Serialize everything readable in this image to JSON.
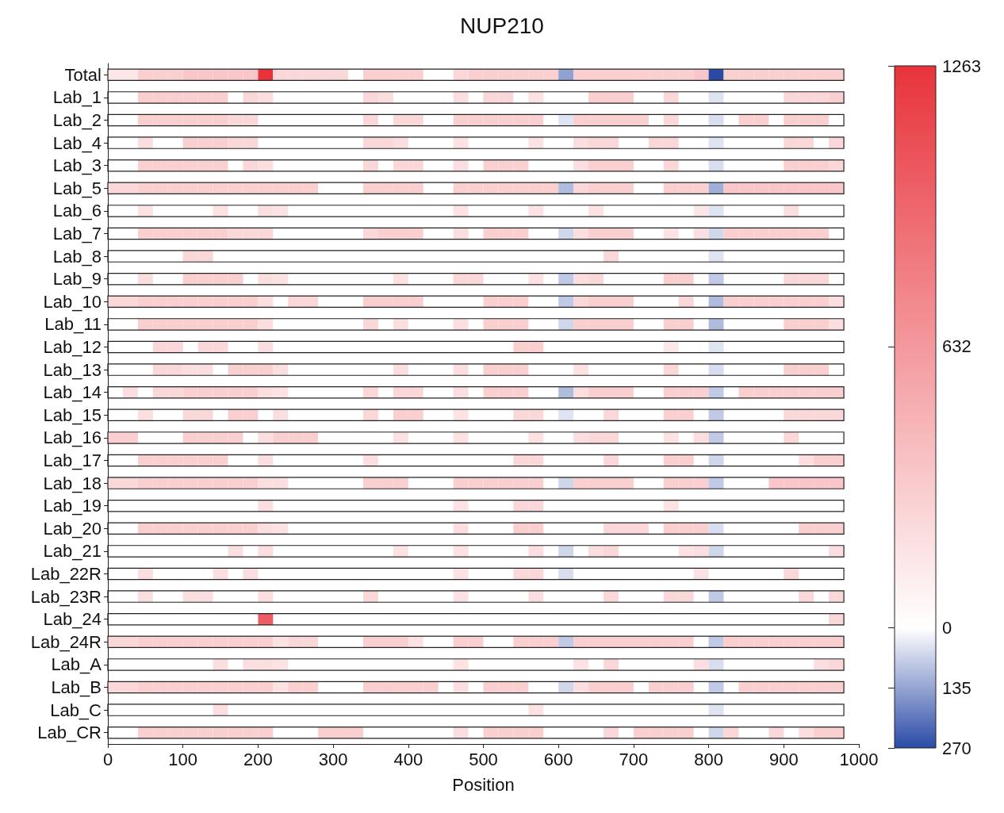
{
  "chart_data": {
    "type": "heatmap",
    "title": "NUP210",
    "xlabel": "Position",
    "x": [
      10,
      30,
      50,
      70,
      90,
      110,
      130,
      150,
      170,
      190,
      210,
      230,
      250,
      270,
      290,
      310,
      330,
      350,
      370,
      390,
      410,
      430,
      450,
      470,
      490,
      510,
      530,
      550,
      570,
      590,
      610,
      630,
      650,
      670,
      690,
      710,
      730,
      750,
      770,
      790,
      810,
      830,
      850,
      870,
      890,
      910,
      930,
      950,
      970
    ],
    "xlim": [
      0,
      1000
    ],
    "xticks": [
      0,
      100,
      200,
      300,
      400,
      500,
      600,
      700,
      800,
      900,
      1000
    ],
    "y_categories": [
      "Total",
      "Lab_1",
      "Lab_2",
      "Lab_4",
      "Lab_3",
      "Lab_5",
      "Lab_6",
      "Lab_7",
      "Lab_8",
      "Lab_9",
      "Lab_10",
      "Lab_11",
      "Lab_12",
      "Lab_13",
      "Lab_14",
      "Lab_15",
      "Lab_16",
      "Lab_17",
      "Lab_18",
      "Lab_19",
      "Lab_20",
      "Lab_21",
      "Lab_22R",
      "Lab_23R",
      "Lab_24",
      "Lab_24R",
      "Lab_A",
      "Lab_B",
      "Lab_C",
      "Lab_CR"
    ],
    "clim": [
      -270,
      1263
    ],
    "cticks": [
      1263,
      632,
      0,
      {
        "value": -135,
        "label": "135"
      },
      {
        "value": -270,
        "label": "270"
      }
    ],
    "cells": [
      [
        150,
        150,
        300,
        300,
        300,
        350,
        350,
        350,
        350,
        350,
        1263,
        250,
        250,
        250,
        250,
        250,
        null,
        300,
        300,
        300,
        300,
        null,
        null,
        250,
        300,
        300,
        300,
        300,
        300,
        300,
        -140,
        300,
        300,
        300,
        300,
        300,
        300,
        300,
        300,
        350,
        -270,
        300,
        300,
        300,
        300,
        300,
        300,
        300,
        300
      ],
      [
        null,
        null,
        300,
        300,
        300,
        300,
        300,
        300,
        null,
        250,
        200,
        null,
        null,
        null,
        null,
        null,
        null,
        250,
        200,
        null,
        null,
        null,
        null,
        200,
        null,
        250,
        250,
        null,
        180,
        null,
        null,
        null,
        300,
        300,
        300,
        null,
        null,
        250,
        null,
        null,
        -40,
        null,
        null,
        null,
        null,
        250,
        250,
        250,
        300
      ],
      [
        null,
        null,
        300,
        300,
        300,
        300,
        300,
        300,
        250,
        250,
        null,
        null,
        null,
        null,
        null,
        null,
        null,
        250,
        null,
        250,
        250,
        null,
        null,
        300,
        300,
        300,
        300,
        300,
        300,
        null,
        -40,
        300,
        300,
        300,
        300,
        300,
        null,
        250,
        null,
        null,
        -50,
        null,
        300,
        300,
        null,
        300,
        300,
        300,
        null
      ],
      [
        null,
        null,
        200,
        null,
        null,
        300,
        300,
        300,
        250,
        250,
        null,
        null,
        null,
        null,
        null,
        null,
        null,
        250,
        250,
        200,
        null,
        null,
        null,
        180,
        null,
        null,
        null,
        null,
        180,
        null,
        null,
        200,
        250,
        250,
        null,
        null,
        250,
        250,
        null,
        null,
        -40,
        null,
        null,
        null,
        null,
        250,
        250,
        null,
        250
      ],
      [
        null,
        null,
        300,
        300,
        300,
        300,
        300,
        300,
        null,
        250,
        200,
        null,
        null,
        null,
        null,
        null,
        null,
        250,
        null,
        250,
        250,
        null,
        null,
        200,
        null,
        300,
        300,
        300,
        null,
        null,
        null,
        200,
        300,
        300,
        300,
        null,
        null,
        250,
        null,
        null,
        -50,
        null,
        null,
        null,
        null,
        300,
        300,
        300,
        250
      ],
      [
        250,
        250,
        300,
        300,
        300,
        300,
        300,
        300,
        300,
        300,
        300,
        300,
        300,
        300,
        null,
        null,
        null,
        300,
        300,
        300,
        300,
        null,
        null,
        300,
        300,
        300,
        300,
        300,
        300,
        300,
        -100,
        250,
        300,
        300,
        300,
        null,
        null,
        300,
        300,
        300,
        -120,
        350,
        350,
        350,
        350,
        350,
        350,
        350,
        350
      ],
      [
        null,
        null,
        180,
        null,
        null,
        null,
        null,
        180,
        null,
        null,
        200,
        180,
        null,
        null,
        null,
        null,
        null,
        null,
        null,
        null,
        null,
        null,
        null,
        180,
        null,
        null,
        null,
        null,
        180,
        null,
        null,
        null,
        180,
        null,
        null,
        null,
        null,
        null,
        null,
        150,
        -40,
        null,
        null,
        null,
        null,
        200,
        null,
        null,
        null
      ],
      [
        null,
        null,
        300,
        300,
        300,
        300,
        300,
        300,
        250,
        250,
        250,
        null,
        null,
        null,
        null,
        null,
        null,
        250,
        300,
        300,
        300,
        null,
        null,
        200,
        null,
        300,
        300,
        300,
        null,
        null,
        -60,
        200,
        300,
        300,
        300,
        null,
        null,
        180,
        null,
        200,
        -60,
        300,
        300,
        300,
        300,
        300,
        300,
        300,
        null
      ],
      [
        null,
        null,
        null,
        null,
        null,
        250,
        250,
        null,
        null,
        null,
        null,
        null,
        null,
        null,
        null,
        null,
        null,
        null,
        null,
        null,
        null,
        null,
        null,
        null,
        null,
        null,
        null,
        null,
        null,
        null,
        null,
        null,
        null,
        250,
        null,
        null,
        null,
        null,
        null,
        null,
        -40,
        null,
        null,
        null,
        null,
        null,
        null,
        null,
        null
      ],
      [
        null,
        null,
        200,
        null,
        null,
        300,
        300,
        300,
        300,
        null,
        200,
        180,
        null,
        null,
        null,
        null,
        null,
        null,
        null,
        180,
        null,
        null,
        null,
        250,
        250,
        null,
        null,
        null,
        180,
        null,
        -80,
        200,
        250,
        null,
        null,
        null,
        null,
        300,
        300,
        null,
        -80,
        null,
        null,
        null,
        null,
        250,
        250,
        250,
        null
      ],
      [
        250,
        250,
        300,
        300,
        300,
        300,
        300,
        300,
        300,
        300,
        200,
        null,
        250,
        250,
        null,
        null,
        null,
        300,
        300,
        300,
        300,
        null,
        null,
        null,
        null,
        300,
        300,
        300,
        null,
        null,
        -80,
        250,
        300,
        300,
        300,
        null,
        null,
        null,
        250,
        null,
        -100,
        300,
        300,
        300,
        300,
        300,
        300,
        300,
        200
      ],
      [
        null,
        null,
        300,
        300,
        300,
        300,
        300,
        300,
        300,
        300,
        200,
        null,
        null,
        null,
        null,
        null,
        null,
        250,
        null,
        200,
        null,
        null,
        null,
        200,
        null,
        300,
        300,
        300,
        null,
        null,
        -60,
        300,
        300,
        300,
        300,
        null,
        null,
        300,
        300,
        null,
        -100,
        null,
        null,
        null,
        null,
        300,
        300,
        300,
        200
      ],
      [
        null,
        null,
        null,
        250,
        250,
        null,
        250,
        250,
        null,
        null,
        200,
        null,
        null,
        null,
        null,
        null,
        null,
        null,
        null,
        null,
        null,
        null,
        null,
        null,
        null,
        null,
        null,
        300,
        300,
        null,
        null,
        null,
        null,
        null,
        null,
        null,
        null,
        150,
        null,
        null,
        -40,
        null,
        null,
        null,
        null,
        null,
        null,
        null,
        null
      ],
      [
        null,
        null,
        null,
        250,
        250,
        200,
        200,
        null,
        300,
        300,
        300,
        200,
        null,
        null,
        null,
        null,
        null,
        null,
        null,
        200,
        null,
        null,
        null,
        200,
        null,
        300,
        300,
        300,
        null,
        null,
        null,
        180,
        null,
        null,
        null,
        null,
        null,
        250,
        null,
        null,
        -50,
        null,
        null,
        null,
        null,
        300,
        300,
        300,
        null
      ],
      [
        null,
        200,
        null,
        250,
        250,
        300,
        300,
        300,
        300,
        300,
        200,
        180,
        null,
        null,
        null,
        null,
        null,
        250,
        null,
        250,
        250,
        null,
        null,
        200,
        null,
        300,
        300,
        300,
        null,
        null,
        -100,
        200,
        300,
        300,
        300,
        null,
        null,
        300,
        300,
        300,
        -80,
        null,
        300,
        300,
        300,
        300,
        300,
        300,
        300
      ],
      [
        null,
        null,
        200,
        null,
        null,
        250,
        250,
        null,
        300,
        300,
        null,
        200,
        null,
        null,
        null,
        null,
        null,
        250,
        null,
        300,
        300,
        null,
        null,
        180,
        null,
        null,
        null,
        250,
        250,
        null,
        -40,
        null,
        null,
        250,
        null,
        null,
        null,
        300,
        300,
        null,
        -80,
        null,
        null,
        null,
        null,
        250,
        250,
        250,
        250
      ],
      [
        300,
        300,
        null,
        null,
        null,
        300,
        300,
        300,
        300,
        null,
        200,
        300,
        300,
        300,
        null,
        null,
        null,
        null,
        null,
        180,
        null,
        null,
        null,
        180,
        null,
        null,
        null,
        null,
        180,
        null,
        null,
        200,
        250,
        250,
        null,
        null,
        null,
        180,
        null,
        200,
        -80,
        null,
        null,
        null,
        null,
        250,
        null,
        null,
        null
      ],
      [
        null,
        null,
        300,
        300,
        300,
        300,
        300,
        300,
        null,
        null,
        200,
        null,
        null,
        null,
        null,
        null,
        null,
        200,
        null,
        null,
        null,
        null,
        null,
        null,
        null,
        null,
        null,
        250,
        250,
        null,
        null,
        null,
        null,
        250,
        null,
        null,
        null,
        300,
        300,
        null,
        -60,
        null,
        null,
        null,
        null,
        null,
        200,
        300,
        300
      ],
      [
        250,
        250,
        300,
        300,
        300,
        300,
        300,
        300,
        300,
        300,
        200,
        200,
        null,
        null,
        null,
        null,
        null,
        300,
        300,
        300,
        null,
        null,
        null,
        300,
        300,
        300,
        300,
        300,
        300,
        null,
        -60,
        300,
        300,
        300,
        300,
        null,
        null,
        300,
        300,
        300,
        -80,
        null,
        null,
        null,
        350,
        350,
        350,
        350,
        350
      ],
      [
        null,
        null,
        null,
        null,
        null,
        null,
        null,
        null,
        null,
        null,
        200,
        null,
        null,
        null,
        null,
        null,
        null,
        null,
        null,
        null,
        null,
        null,
        null,
        180,
        null,
        null,
        null,
        250,
        250,
        null,
        null,
        null,
        null,
        null,
        null,
        null,
        null,
        180,
        null,
        null,
        null,
        null,
        null,
        null,
        null,
        null,
        null,
        null,
        null
      ],
      [
        null,
        null,
        300,
        300,
        300,
        300,
        300,
        300,
        300,
        300,
        200,
        180,
        null,
        null,
        null,
        null,
        null,
        null,
        null,
        null,
        null,
        null,
        null,
        200,
        null,
        null,
        null,
        300,
        300,
        null,
        null,
        null,
        null,
        250,
        250,
        250,
        null,
        300,
        300,
        300,
        -50,
        null,
        null,
        null,
        null,
        null,
        300,
        300,
        300
      ],
      [
        null,
        null,
        null,
        null,
        null,
        null,
        null,
        null,
        200,
        null,
        200,
        null,
        null,
        null,
        null,
        null,
        null,
        null,
        null,
        180,
        null,
        null,
        null,
        180,
        null,
        null,
        null,
        null,
        200,
        null,
        -60,
        null,
        200,
        250,
        null,
        null,
        null,
        null,
        180,
        200,
        -60,
        null,
        null,
        null,
        null,
        null,
        null,
        null,
        200
      ],
      [
        null,
        null,
        200,
        null,
        null,
        null,
        null,
        200,
        null,
        200,
        null,
        null,
        null,
        null,
        null,
        null,
        null,
        null,
        null,
        null,
        null,
        null,
        null,
        180,
        null,
        null,
        null,
        250,
        250,
        null,
        -50,
        null,
        null,
        null,
        null,
        null,
        null,
        null,
        null,
        180,
        null,
        null,
        null,
        null,
        null,
        250,
        null,
        null,
        null
      ],
      [
        null,
        null,
        200,
        null,
        null,
        200,
        200,
        null,
        null,
        null,
        200,
        null,
        null,
        null,
        null,
        null,
        null,
        250,
        null,
        null,
        null,
        null,
        null,
        180,
        null,
        null,
        null,
        null,
        200,
        null,
        null,
        null,
        null,
        250,
        null,
        null,
        null,
        250,
        250,
        null,
        -80,
        null,
        null,
        null,
        null,
        null,
        250,
        null,
        250
      ],
      [
        null,
        null,
        null,
        null,
        null,
        null,
        null,
        null,
        null,
        null,
        1000,
        null,
        null,
        null,
        null,
        null,
        null,
        null,
        null,
        null,
        null,
        null,
        null,
        null,
        null,
        null,
        null,
        null,
        null,
        null,
        null,
        null,
        null,
        null,
        null,
        null,
        null,
        null,
        null,
        null,
        null,
        null,
        null,
        null,
        null,
        null,
        null,
        null,
        250
      ],
      [
        250,
        250,
        300,
        300,
        300,
        300,
        300,
        300,
        300,
        300,
        300,
        180,
        250,
        250,
        null,
        null,
        null,
        300,
        300,
        300,
        180,
        null,
        null,
        300,
        300,
        null,
        null,
        300,
        300,
        300,
        -80,
        300,
        300,
        300,
        300,
        300,
        300,
        300,
        300,
        null,
        -80,
        300,
        300,
        300,
        300,
        300,
        300,
        300,
        300
      ],
      [
        null,
        null,
        null,
        null,
        null,
        null,
        null,
        200,
        null,
        200,
        200,
        180,
        null,
        null,
        null,
        null,
        null,
        null,
        null,
        null,
        null,
        null,
        null,
        180,
        null,
        null,
        null,
        null,
        null,
        null,
        null,
        180,
        null,
        250,
        null,
        null,
        null,
        null,
        null,
        200,
        -50,
        null,
        null,
        null,
        null,
        null,
        null,
        200,
        250
      ],
      [
        250,
        250,
        300,
        300,
        300,
        300,
        300,
        300,
        300,
        300,
        300,
        180,
        300,
        300,
        null,
        null,
        null,
        300,
        300,
        300,
        300,
        300,
        null,
        200,
        null,
        300,
        300,
        300,
        null,
        null,
        -60,
        200,
        300,
        300,
        300,
        null,
        300,
        300,
        300,
        null,
        -80,
        null,
        300,
        300,
        300,
        300,
        300,
        300,
        300
      ],
      [
        null,
        null,
        null,
        null,
        null,
        null,
        null,
        200,
        null,
        null,
        null,
        null,
        null,
        null,
        null,
        null,
        null,
        null,
        null,
        null,
        null,
        null,
        null,
        null,
        null,
        null,
        null,
        null,
        180,
        null,
        null,
        null,
        null,
        null,
        null,
        null,
        null,
        null,
        null,
        null,
        -40,
        null,
        null,
        null,
        null,
        null,
        null,
        null,
        null
      ],
      [
        null,
        null,
        300,
        300,
        300,
        300,
        300,
        300,
        300,
        300,
        300,
        null,
        null,
        null,
        300,
        300,
        300,
        null,
        null,
        null,
        null,
        null,
        null,
        200,
        null,
        300,
        300,
        300,
        300,
        null,
        null,
        null,
        null,
        250,
        null,
        300,
        300,
        300,
        300,
        null,
        -60,
        250,
        null,
        null,
        250,
        null,
        200,
        300,
        300
      ]
    ]
  }
}
